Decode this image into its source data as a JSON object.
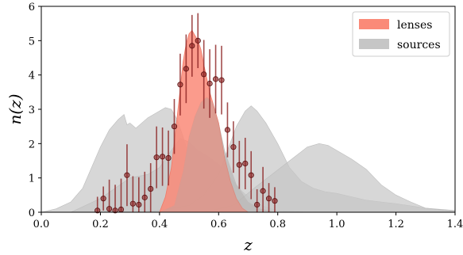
{
  "chart_data": {
    "type": "area",
    "title": "",
    "xlabel": "z",
    "ylabel": "n(z)",
    "xlim": [
      0.0,
      1.4
    ],
    "ylim": [
      0,
      6
    ],
    "xticks": [
      "0.0",
      "0.2",
      "0.4",
      "0.6",
      "0.8",
      "1.0",
      "1.2",
      "1.4"
    ],
    "yticks": [
      "0",
      "1",
      "2",
      "3",
      "4",
      "5",
      "6"
    ],
    "grid": false,
    "legend": {
      "position": "top-right",
      "entries": [
        {
          "label": "lenses",
          "color": "#fa8a78"
        },
        {
          "label": "sources",
          "color": "#c6c6c6"
        }
      ]
    },
    "series": [
      {
        "name": "lenses",
        "color": "#fa8a78",
        "x": [
          0.4,
          0.42,
          0.44,
          0.46,
          0.48,
          0.49,
          0.5,
          0.51,
          0.52,
          0.53,
          0.54,
          0.55,
          0.56,
          0.57,
          0.58,
          0.59,
          0.6,
          0.62,
          0.64,
          0.66,
          0.68,
          0.7
        ],
        "y": [
          0.0,
          0.45,
          1.3,
          2.8,
          4.4,
          4.9,
          5.2,
          5.3,
          5.15,
          5.0,
          4.75,
          4.3,
          3.9,
          3.5,
          3.2,
          2.9,
          2.6,
          1.6,
          0.9,
          0.4,
          0.12,
          0.0
        ]
      },
      {
        "name": "sources",
        "color": "#c6c6c6",
        "components": [
          {
            "x": [
              0.0,
              0.05,
              0.1,
              0.14,
              0.17,
              0.2,
              0.23,
              0.26,
              0.28,
              0.29,
              0.3,
              0.32,
              0.34,
              0.36,
              0.38,
              0.4,
              0.42,
              0.44,
              0.46,
              0.48,
              0.5,
              0.52,
              0.54,
              0.56,
              0.58,
              0.62,
              0.66,
              0.7
            ],
            "y": [
              0.0,
              0.1,
              0.3,
              0.7,
              1.3,
              1.9,
              2.4,
              2.7,
              2.85,
              2.55,
              2.6,
              2.45,
              2.6,
              2.75,
              2.85,
              2.95,
              3.05,
              3.0,
              2.7,
              2.2,
              1.6,
              1.0,
              0.6,
              0.35,
              0.2,
              0.1,
              0.05,
              0.0
            ]
          },
          {
            "x": [
              0.1,
              0.2,
              0.3,
              0.36,
              0.4,
              0.44,
              0.47,
              0.5,
              0.53,
              0.56,
              0.6,
              0.64,
              0.68,
              0.72,
              0.76,
              0.8,
              0.9
            ],
            "y": [
              0.0,
              0.4,
              1.0,
              1.1,
              1.3,
              1.8,
              2.15,
              2.05,
              1.8,
              1.65,
              1.4,
              1.0,
              0.6,
              0.3,
              0.15,
              0.05,
              0.0
            ]
          },
          {
            "x": [
              0.4,
              0.45,
              0.48,
              0.5,
              0.52,
              0.54,
              0.56,
              0.58,
              0.6,
              0.62,
              0.66,
              0.7,
              0.74,
              0.8
            ],
            "y": [
              0.0,
              0.2,
              1.2,
              2.2,
              2.8,
              3.2,
              3.35,
              3.2,
              2.6,
              1.8,
              0.8,
              0.3,
              0.1,
              0.0
            ]
          },
          {
            "x": [
              0.3,
              0.4,
              0.5,
              0.55,
              0.6,
              0.63,
              0.66,
              0.69,
              0.71,
              0.73,
              0.76,
              0.8,
              0.84,
              0.88,
              0.92,
              0.96,
              1.0,
              1.05,
              1.1,
              1.15,
              1.2,
              1.3,
              1.4
            ],
            "y": [
              0.0,
              0.05,
              0.2,
              0.5,
              1.1,
              1.8,
              2.5,
              2.95,
              3.1,
              2.95,
              2.6,
              2.0,
              1.3,
              0.9,
              0.7,
              0.6,
              0.55,
              0.45,
              0.35,
              0.3,
              0.25,
              0.12,
              0.05
            ]
          },
          {
            "x": [
              0.55,
              0.65,
              0.72,
              0.78,
              0.84,
              0.9,
              0.94,
              0.97,
              1.0,
              1.05,
              1.1,
              1.15,
              1.2,
              1.25,
              1.3,
              1.4
            ],
            "y": [
              0.0,
              0.2,
              0.7,
              1.1,
              1.5,
              1.9,
              2.0,
              1.95,
              1.8,
              1.55,
              1.25,
              0.8,
              0.5,
              0.3,
              0.12,
              0.02
            ]
          }
        ]
      }
    ],
    "points": {
      "color": "#8b2020",
      "data": [
        {
          "x": 0.19,
          "y": 0.05,
          "err": 0.4
        },
        {
          "x": 0.21,
          "y": 0.4,
          "err": 0.35
        },
        {
          "x": 0.23,
          "y": 0.1,
          "err": 0.85
        },
        {
          "x": 0.25,
          "y": 0.05,
          "err": 0.75
        },
        {
          "x": 0.27,
          "y": 0.08,
          "err": 0.9
        },
        {
          "x": 0.29,
          "y": 1.08,
          "err": 0.9
        },
        {
          "x": 0.31,
          "y": 0.25,
          "err": 0.8
        },
        {
          "x": 0.33,
          "y": 0.22,
          "err": 0.8
        },
        {
          "x": 0.35,
          "y": 0.43,
          "err": 0.75
        },
        {
          "x": 0.37,
          "y": 0.68,
          "err": 0.75
        },
        {
          "x": 0.39,
          "y": 1.6,
          "err": 0.9
        },
        {
          "x": 0.41,
          "y": 1.62,
          "err": 0.85
        },
        {
          "x": 0.43,
          "y": 1.58,
          "err": 0.8
        },
        {
          "x": 0.45,
          "y": 2.5,
          "err": 0.8
        },
        {
          "x": 0.47,
          "y": 3.72,
          "err": 0.9
        },
        {
          "x": 0.49,
          "y": 4.18,
          "err": 1.0
        },
        {
          "x": 0.51,
          "y": 4.85,
          "err": 0.9
        },
        {
          "x": 0.53,
          "y": 5.0,
          "err": 0.8
        },
        {
          "x": 0.55,
          "y": 4.02,
          "err": 1.0
        },
        {
          "x": 0.57,
          "y": 3.75,
          "err": 1.0
        },
        {
          "x": 0.59,
          "y": 3.88,
          "err": 1.0
        },
        {
          "x": 0.61,
          "y": 3.85,
          "err": 1.0
        },
        {
          "x": 0.63,
          "y": 2.4,
          "err": 0.8
        },
        {
          "x": 0.65,
          "y": 1.9,
          "err": 0.75
        },
        {
          "x": 0.67,
          "y": 1.38,
          "err": 0.7
        },
        {
          "x": 0.69,
          "y": 1.42,
          "err": 0.75
        },
        {
          "x": 0.71,
          "y": 1.08,
          "err": 0.7
        },
        {
          "x": 0.73,
          "y": 0.22,
          "err": 0.45
        },
        {
          "x": 0.75,
          "y": 0.62,
          "err": 0.7
        },
        {
          "x": 0.77,
          "y": 0.4,
          "err": 0.45
        },
        {
          "x": 0.79,
          "y": 0.33,
          "err": 0.4
        }
      ]
    }
  }
}
